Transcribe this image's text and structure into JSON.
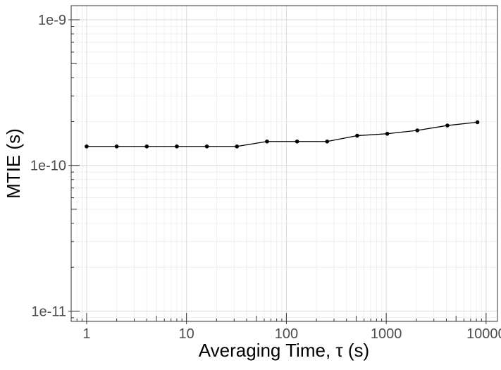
{
  "chart_data": {
    "type": "line",
    "xlabel": "Averaging Time, τ (s)",
    "ylabel": "MTIE (s)",
    "x_scale": "log",
    "y_scale": "log",
    "xlim": [
      0.7,
      13000
    ],
    "ylim": [
      8.5e-12,
      1.25e-09
    ],
    "x_ticks": [
      1,
      10,
      100,
      1000,
      10000
    ],
    "x_tick_labels": [
      "1",
      "10",
      "100",
      "1000",
      "10000"
    ],
    "y_ticks": [
      1e-11,
      1e-10,
      1e-09
    ],
    "y_tick_labels": [
      "1e-11",
      "1e-10",
      "1e-9"
    ],
    "grid": true,
    "series": [
      {
        "x": [
          1,
          2,
          4,
          8,
          16,
          32,
          64,
          128,
          256,
          512,
          1024,
          2048,
          4096,
          8192
        ],
        "y": [
          1.35e-10,
          1.35e-10,
          1.35e-10,
          1.35e-10,
          1.35e-10,
          1.35e-10,
          1.46e-10,
          1.46e-10,
          1.46e-10,
          1.6e-10,
          1.65e-10,
          1.74e-10,
          1.88e-10,
          1.98e-10
        ],
        "color": "#000000"
      }
    ]
  }
}
